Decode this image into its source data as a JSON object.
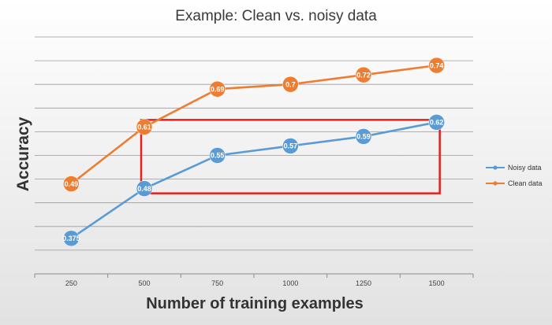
{
  "chart_data": {
    "type": "line",
    "title": "Example: Clean vs. noisy data",
    "xlabel": "Number of training examples",
    "ylabel": "Accuracy",
    "categories": [
      "250",
      "500",
      "750",
      "1000",
      "1250",
      "1500"
    ],
    "ylim": [
      0.3,
      0.8
    ],
    "grid": true,
    "legend_position": "right",
    "series": [
      {
        "name": "Noisy data",
        "color": "#5b9bd5",
        "values": [
          0.375,
          0.48,
          0.55,
          0.57,
          0.59,
          0.62
        ],
        "labels": [
          "0.375",
          "0.48",
          "0.55",
          "0.57",
          "0.59",
          "0.62"
        ]
      },
      {
        "name": "Clean data",
        "color": "#ed7d31",
        "values": [
          0.49,
          0.61,
          0.69,
          0.7,
          0.72,
          0.74
        ],
        "labels": [
          "0.49",
          "0.61",
          "0.69",
          "0.7",
          "0.72",
          "0.74"
        ]
      }
    ],
    "annotations": [
      {
        "type": "rectangle",
        "color": "#e8201c",
        "x_from": "500",
        "x_to": "1500",
        "y_from": 0.47,
        "y_to": 0.625
      }
    ]
  }
}
